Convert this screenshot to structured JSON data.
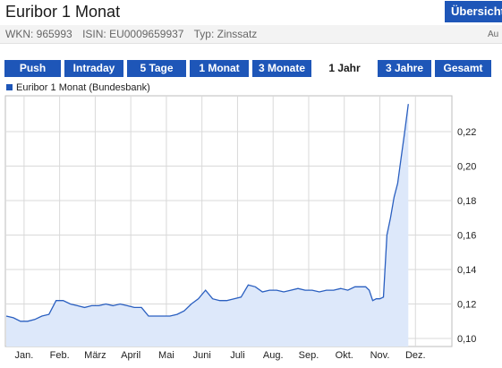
{
  "header": {
    "title": "Euribor 1 Monat",
    "overview_button": "Übersicht",
    "info": {
      "wkn": "WKN: 965993",
      "isin": "ISIN: EU0009659937",
      "typ": "Typ: Zinssatz"
    },
    "info_right": "Au"
  },
  "tabs": [
    {
      "label": "Push",
      "active": false
    },
    {
      "label": "Intraday",
      "active": false
    },
    {
      "label": "5 Tage",
      "active": false
    },
    {
      "label": "1 Monat",
      "active": false
    },
    {
      "label": "3 Monate",
      "active": false
    },
    {
      "label": "1 Jahr",
      "active": true
    },
    {
      "label": "3 Jahre",
      "active": false
    },
    {
      "label": "Gesamt",
      "active": false
    }
  ],
  "colors": {
    "accent": "#1e56b8",
    "line": "#2a5fc0",
    "fill": "#dde8fa",
    "grid": "#d9d9d9"
  },
  "chart_data": {
    "type": "area",
    "legend": [
      "Euribor 1 Monat (Bundesbank)"
    ],
    "x_ticks": [
      "Jan.",
      "Feb.",
      "März",
      "April",
      "Mai",
      "Juni",
      "Juli",
      "Aug.",
      "Sep.",
      "Okt.",
      "Nov.",
      "Dez."
    ],
    "ylim": [
      0.1,
      0.24
    ],
    "y_ticks": [
      "0,10",
      "0,12",
      "0,14",
      "0,16",
      "0,18",
      "0,20",
      "0,22"
    ],
    "y_tick_values": [
      0.1,
      0.12,
      0.14,
      0.16,
      0.18,
      0.2,
      0.22
    ],
    "grid": true,
    "series": [
      {
        "name": "Euribor 1 Monat (Bundesbank)",
        "x": [
          0,
          0.2,
          0.4,
          0.6,
          0.8,
          1.0,
          1.2,
          1.4,
          1.6,
          1.8,
          2.0,
          2.2,
          2.4,
          2.6,
          2.8,
          3.0,
          3.2,
          3.4,
          3.6,
          3.8,
          4.0,
          4.2,
          4.4,
          4.6,
          4.8,
          5.0,
          5.2,
          5.4,
          5.6,
          5.8,
          6.0,
          6.2,
          6.4,
          6.6,
          6.8,
          7.0,
          7.2,
          7.4,
          7.6,
          7.8,
          8.0,
          8.2,
          8.4,
          8.6,
          8.8,
          9.0,
          9.2,
          9.4,
          9.6,
          9.8,
          10.0,
          10.1,
          10.2,
          10.3,
          10.4,
          10.5,
          10.6,
          10.7,
          10.8,
          10.9,
          11.0,
          11.1,
          11.2,
          11.3
        ],
        "values": [
          0.113,
          0.112,
          0.11,
          0.11,
          0.111,
          0.113,
          0.114,
          0.122,
          0.122,
          0.12,
          0.119,
          0.118,
          0.119,
          0.119,
          0.12,
          0.119,
          0.12,
          0.119,
          0.118,
          0.118,
          0.113,
          0.113,
          0.113,
          0.113,
          0.114,
          0.116,
          0.12,
          0.123,
          0.128,
          0.123,
          0.122,
          0.122,
          0.123,
          0.124,
          0.131,
          0.13,
          0.127,
          0.128,
          0.128,
          0.127,
          0.128,
          0.129,
          0.128,
          0.128,
          0.127,
          0.128,
          0.128,
          0.129,
          0.128,
          0.13,
          0.13,
          0.13,
          0.128,
          0.122,
          0.123,
          0.123,
          0.124,
          0.16,
          0.17,
          0.182,
          0.19,
          0.205,
          0.22,
          0.236
        ]
      }
    ]
  }
}
